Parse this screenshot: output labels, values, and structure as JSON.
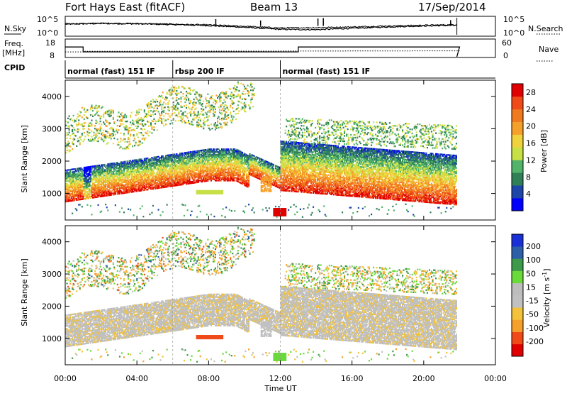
{
  "header": {
    "station": "Fort Hays East (fitACF)",
    "beam": "Beam 13",
    "date": "17/Sep/2014"
  },
  "noise_panel": {
    "left_label": "N.Sky",
    "right_label": "N.Search",
    "left_ticks": [
      "10^5",
      "10^0"
    ],
    "right_ticks": [
      "10^5",
      "10^0"
    ]
  },
  "freq_panel": {
    "left_label_1": "Freq.",
    "left_label_2": "[MHz]",
    "right_label": "Nave",
    "left_ticks": [
      "18",
      "8"
    ],
    "right_ticks": [
      "60",
      "0"
    ]
  },
  "cpid": {
    "label": "CPID",
    "modes": [
      {
        "text": "normal (fast) 151 IF",
        "start_h": 0.0
      },
      {
        "text": "rbsp 200 IF",
        "start_h": 6.0
      },
      {
        "text": "normal (fast) 151 IF",
        "start_h": 12.0
      }
    ]
  },
  "colors": {
    "power": [
      "#0000ff",
      "#1e46a8",
      "#2f7f57",
      "#52b36a",
      "#c7e046",
      "#f0d23c",
      "#f5a02a",
      "#f07a20",
      "#ef4a18",
      "#e00000"
    ],
    "velocity": [
      "#e00000",
      "#ef4a18",
      "#f5a02a",
      "#f2c23c",
      "#c0c0c0",
      "#bdbdbd",
      "#6ad93a",
      "#3d9a4a",
      "#2d5fa8",
      "#1a2fd6"
    ],
    "gray_scatter": "#c0c0c0"
  },
  "chart_data": [
    {
      "type": "line",
      "title": "N.Sky / N.Search",
      "x_range_h": [
        0,
        24
      ],
      "ylim_log10": [
        0,
        5
      ],
      "x": [
        0,
        2,
        4,
        6,
        8,
        10,
        12,
        14,
        16,
        18,
        20,
        22
      ],
      "series": [
        {
          "values": [
            3.1,
            3.3,
            3.2,
            3.0,
            2.7,
            2.2,
            1.6,
            1.5,
            1.9,
            2.3,
            2.6,
            2.8
          ]
        },
        {
          "values": [
            3.2,
            3.4,
            3.3,
            3.1,
            2.9,
            2.5,
            2.0,
            2.1,
            2.3,
            2.6,
            2.8,
            3.0
          ]
        }
      ]
    },
    {
      "type": "line",
      "title": "Freq / Nave",
      "ylim_freq_mhz": [
        8,
        18
      ],
      "ylim_nave": [
        0,
        60
      ],
      "series": [
        {
          "name": "Freq.",
          "x": [
            0,
            1.0,
            1.0,
            13.0,
            13.0,
            22.0
          ],
          "values": [
            14,
            14,
            11,
            11,
            14,
            14
          ]
        },
        {
          "name": "Nave",
          "x": [
            0,
            1.0,
            1.0,
            22.0
          ],
          "values": [
            18,
            18,
            20,
            22
          ]
        }
      ]
    },
    {
      "type": "heatmap",
      "title": "Power [dB]",
      "xlabel": "Time UT",
      "ylabel": "Slant Range [km]",
      "xlim_h": [
        0,
        24
      ],
      "ylim_km": [
        180,
        4500
      ],
      "x_ticks": [
        "00:00",
        "04:00",
        "08:00",
        "12:00",
        "16:00",
        "20:00",
        "00:00"
      ],
      "y_ticks": [
        1000,
        2000,
        3000,
        4000
      ],
      "colorbar_label": "Power [dB]",
      "colorbar_ticks": [
        4,
        8,
        12,
        16,
        20,
        24,
        28
      ],
      "zlim": [
        0,
        30
      ],
      "echo_bands": [
        {
          "t0": 0.0,
          "t1": 11.5,
          "r0_km": 1050,
          "r1_km": 1800,
          "peak_db": 26
        },
        {
          "t0": 11.0,
          "t1": 12.0,
          "r0_km": 1100,
          "r1_km": 1800,
          "peak_db": 20
        },
        {
          "t0": 12.0,
          "t1": 22.0,
          "r0_km": 1250,
          "r1_km": 2100,
          "peak_db": 28
        }
      ],
      "data_gap_h": [
        21.8,
        24.0
      ]
    },
    {
      "type": "heatmap",
      "title": "Velocity [m s^-1]",
      "xlabel": "Time UT",
      "ylabel": "Slant Range [km]",
      "xlim_h": [
        0,
        24
      ],
      "ylim_km": [
        180,
        4500
      ],
      "x_ticks": [
        "00:00",
        "04:00",
        "08:00",
        "12:00",
        "16:00",
        "20:00",
        "00:00"
      ],
      "y_ticks": [
        1000,
        2000,
        3000,
        4000
      ],
      "colorbar_label": "Velocity [m s",
      "colorbar_label_sup": "-1",
      "colorbar_ticks": [
        200,
        100,
        50,
        15,
        -15,
        -50,
        -100,
        -200
      ],
      "zlim": [
        -250,
        250
      ],
      "data_gap_h": [
        21.8,
        24.0
      ]
    }
  ]
}
